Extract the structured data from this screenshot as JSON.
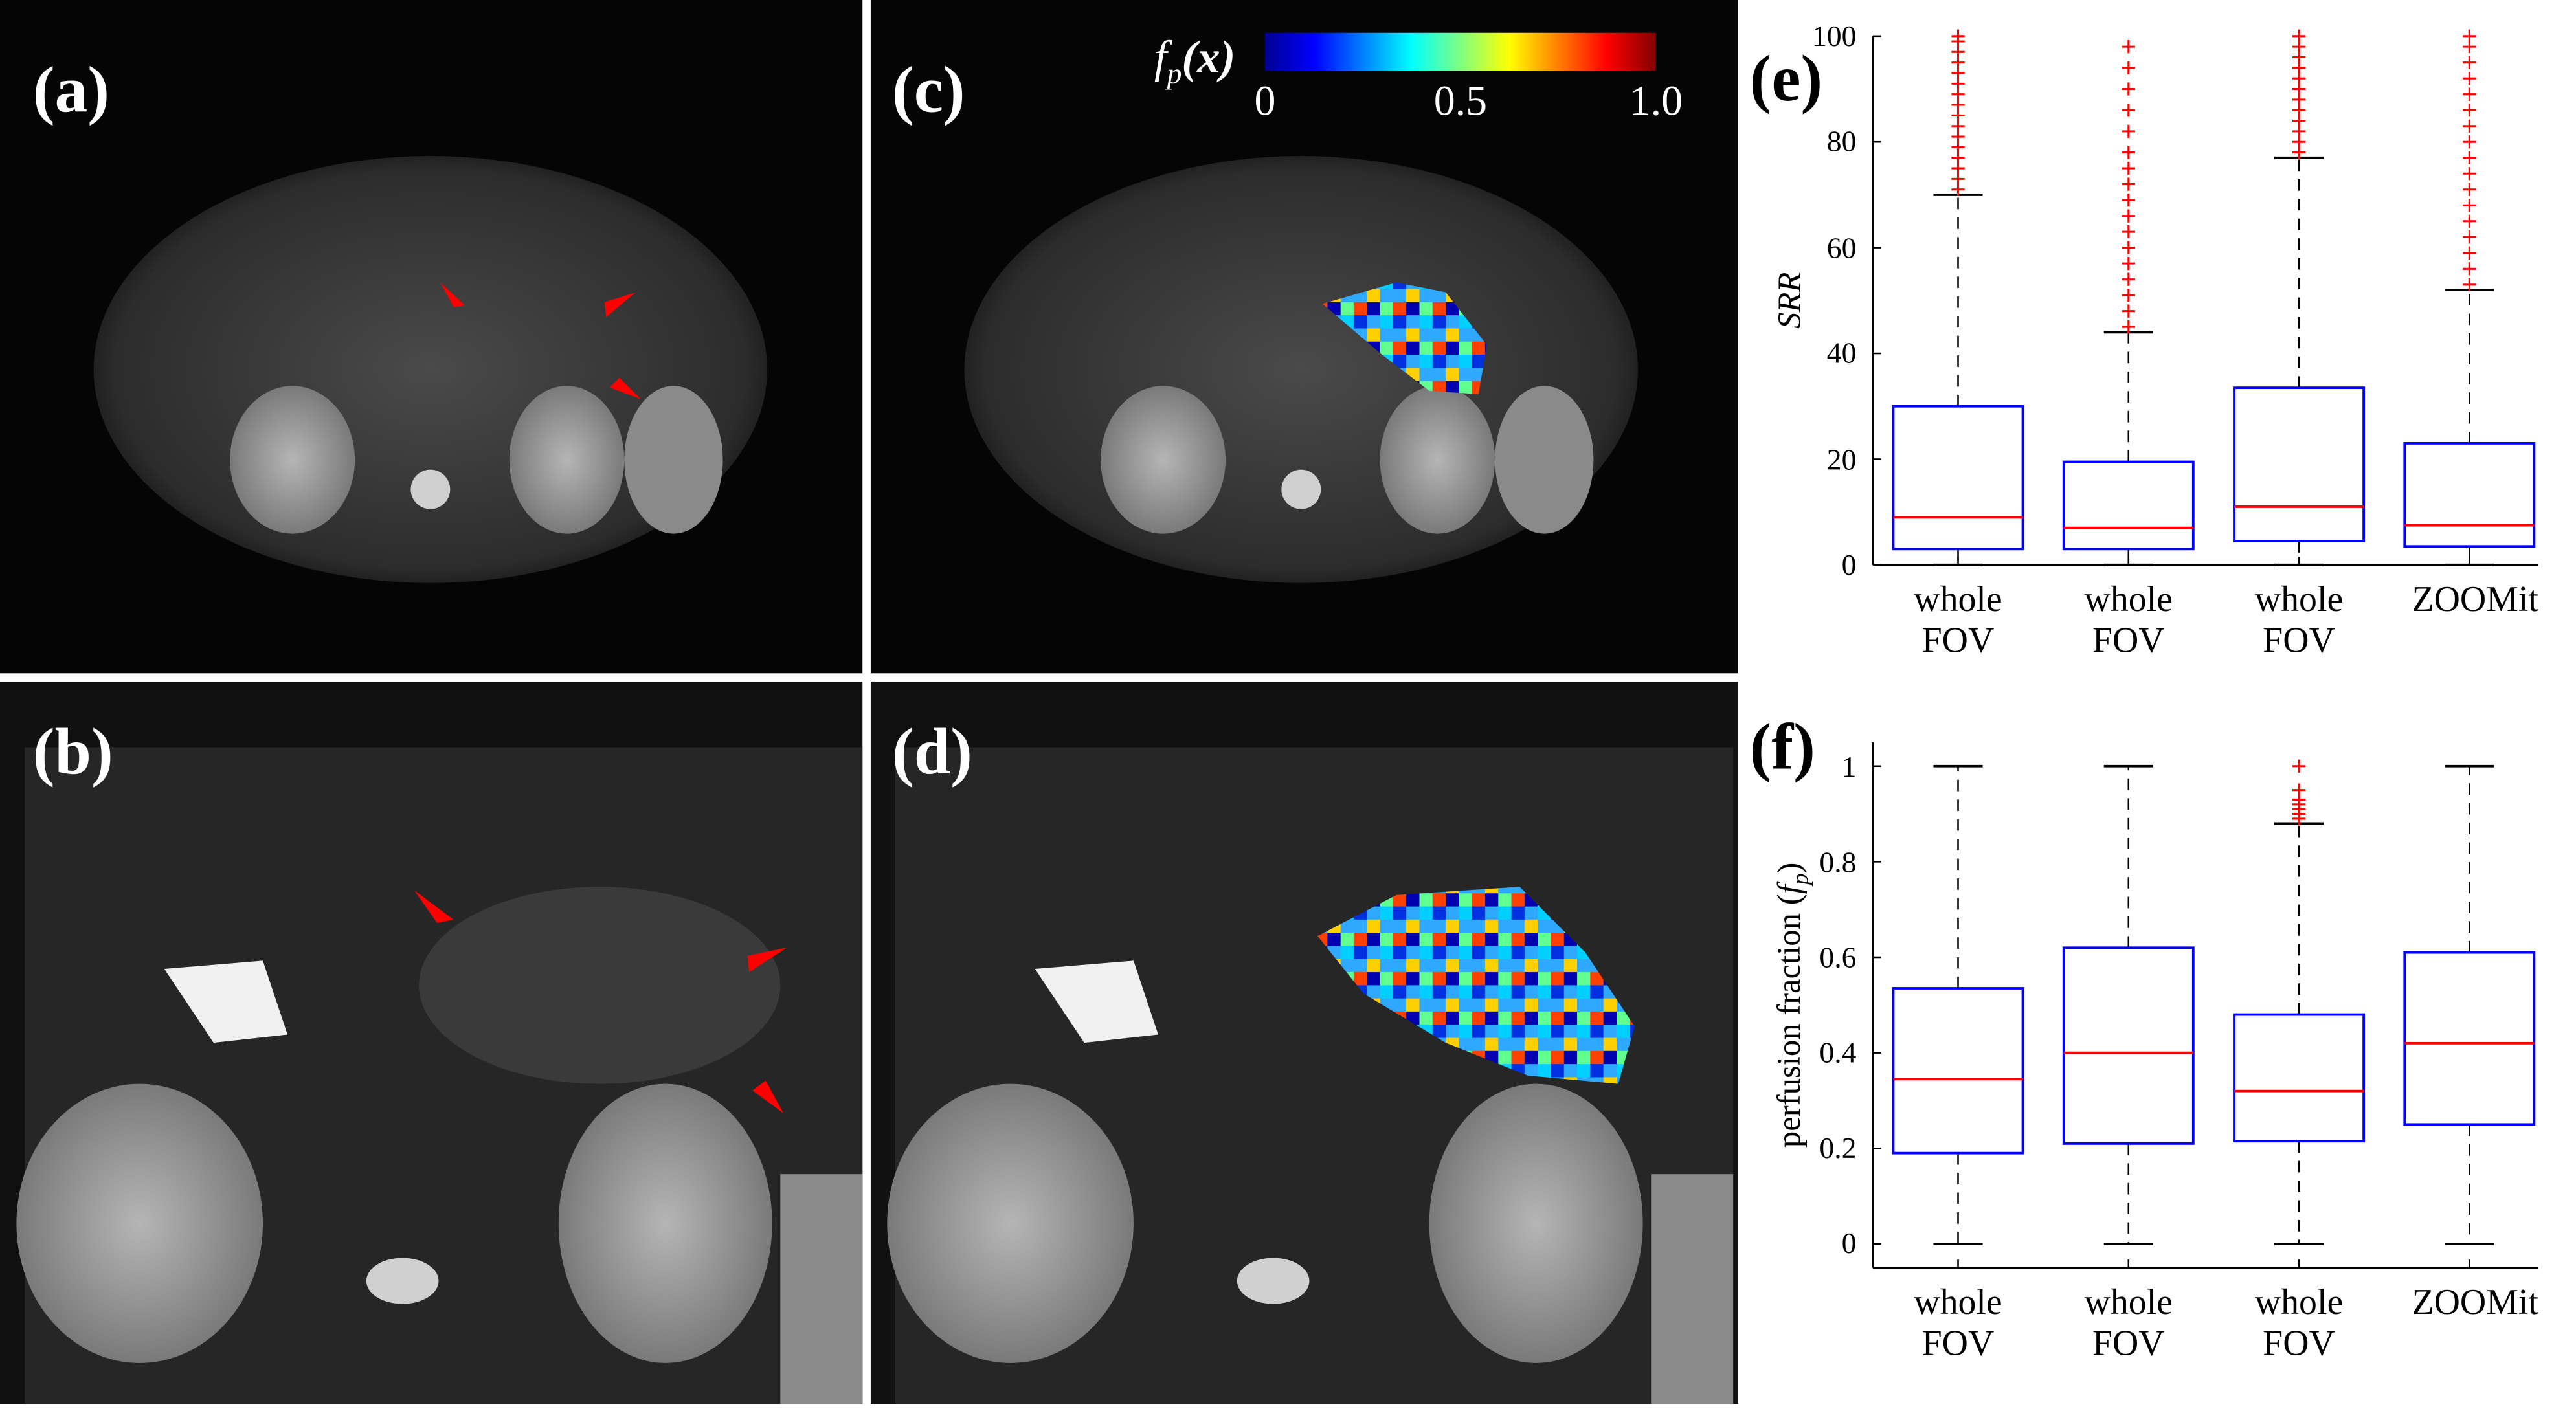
{
  "images": {
    "labels": [
      "(a)",
      "(b)",
      "(c)",
      "(d)"
    ],
    "colorbar": {
      "label": {
        "symbol": "f",
        "subscript": "p",
        "argument": "(x)"
      },
      "ticks": [
        0,
        0.5,
        {
          "value": 1,
          "label": "1.0"
        }
      ]
    }
  },
  "chart_data": [
    {
      "type": "box",
      "panel": "(e)",
      "ylabel": {
        "symbol": "SRR"
      },
      "categories": [
        "whole FOV",
        "whole FOV",
        "whole FOV",
        "ZOOMit"
      ],
      "ylim": [
        0,
        100
      ],
      "yticks": [
        0,
        20,
        40,
        60,
        80,
        100
      ],
      "box_color": "#0000ff",
      "median_color": "#ff0000",
      "outlier_color": "#ff0000",
      "boxes": [
        {
          "whisker_low": 0,
          "q1": 3,
          "median": 9,
          "q3": 30,
          "whisker_high": 70,
          "outliers": [
            71,
            73,
            75,
            77,
            79,
            81,
            83,
            85,
            87,
            89,
            91,
            93,
            95,
            97,
            99,
            100
          ]
        },
        {
          "whisker_low": 0,
          "q1": 3,
          "median": 7,
          "q3": 19.5,
          "whisker_high": 44,
          "outliers": [
            45,
            48,
            51,
            54,
            57,
            60,
            63,
            66,
            69,
            72,
            75,
            78,
            82,
            86,
            90,
            94,
            98
          ]
        },
        {
          "whisker_low": 0,
          "q1": 4.5,
          "median": 11,
          "q3": 33.5,
          "whisker_high": 77,
          "outliers": [
            78,
            80,
            82,
            84,
            86,
            88,
            90,
            92,
            94,
            96,
            98,
            100
          ]
        },
        {
          "whisker_low": 0,
          "q1": 3.5,
          "median": 7.5,
          "q3": 23,
          "whisker_high": 52,
          "outliers": [
            53,
            56,
            59,
            62,
            65,
            68,
            71,
            74,
            77,
            80,
            83,
            86,
            89,
            92,
            95,
            98,
            100
          ]
        }
      ]
    },
    {
      "type": "box",
      "panel": "(f)",
      "ylabel": {
        "text": "perfusion fraction (",
        "symbol": "f",
        "subscript": "p",
        "close": ")"
      },
      "categories": [
        "whole FOV",
        "whole FOV",
        "whole FOV",
        "ZOOMit"
      ],
      "ylim": [
        -0.05,
        1.05
      ],
      "yticks": [
        0,
        0.2,
        0.4,
        0.6,
        0.8,
        1
      ],
      "box_color": "#0000ff",
      "median_color": "#ff0000",
      "outlier_color": "#ff0000",
      "boxes": [
        {
          "whisker_low": 0,
          "q1": 0.19,
          "median": 0.345,
          "q3": 0.535,
          "whisker_high": 1,
          "outliers": []
        },
        {
          "whisker_low": 0,
          "q1": 0.21,
          "median": 0.4,
          "q3": 0.62,
          "whisker_high": 1,
          "outliers": []
        },
        {
          "whisker_low": 0,
          "q1": 0.215,
          "median": 0.32,
          "q3": 0.48,
          "whisker_high": 0.88,
          "outliers": [
            0.89,
            0.9,
            0.91,
            0.92,
            0.93,
            0.95,
            1
          ]
        },
        {
          "whisker_low": 0,
          "q1": 0.25,
          "median": 0.42,
          "q3": 0.61,
          "whisker_high": 1,
          "outliers": []
        }
      ]
    }
  ]
}
